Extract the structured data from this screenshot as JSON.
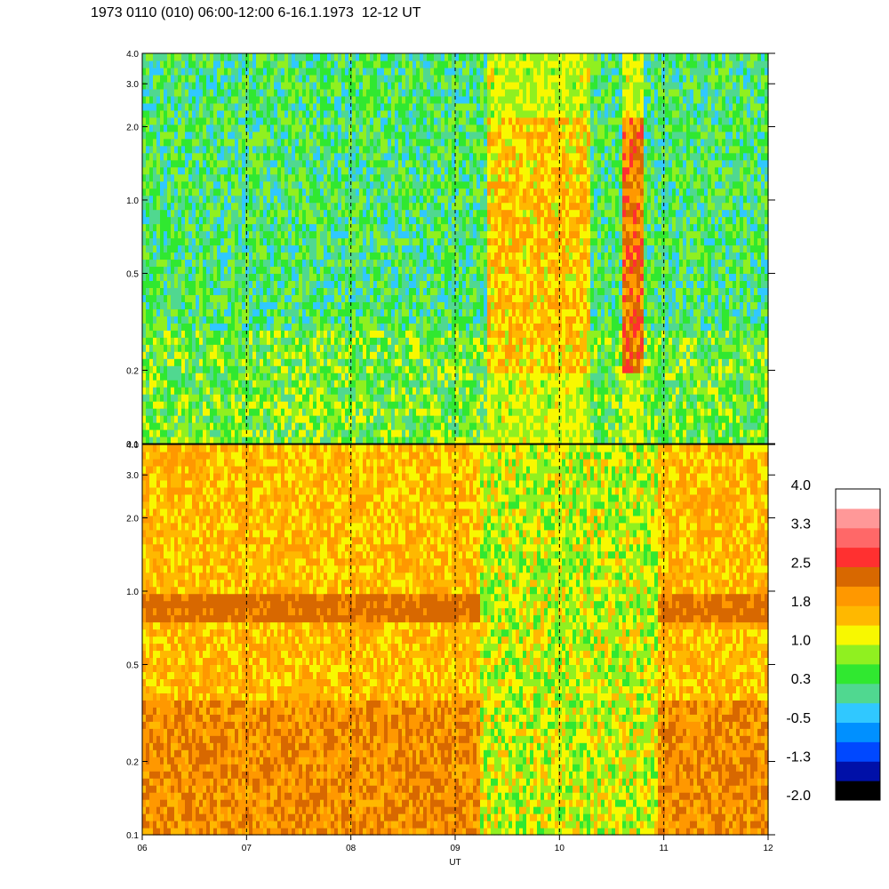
{
  "title": "1973 0110 (010) 06:00-12:00 6-16.1.1973  12-12 UT",
  "chart_data": {
    "type": "heatmap",
    "title": "1973 0110 (010) 06:00-12:00 6-16.1.1973  12-12 UT",
    "xlabel": "UT",
    "x_ticks": [
      "06",
      "07",
      "08",
      "09",
      "10",
      "11",
      "12"
    ],
    "x_range": [
      6,
      12
    ],
    "y_scale": "log",
    "panels": [
      {
        "y_ticks": [
          "0.1",
          "0.2",
          "0.5",
          "1.0",
          "2.0",
          "3.0",
          "4.0"
        ],
        "y_range": [
          0.1,
          4.0
        ],
        "description_levels": {
          "background": 0.3,
          "enhanced_intervals": [
            [
              9.3,
              10.3,
              1.8
            ],
            [
              10.6,
              10.8,
              2.5
            ]
          ]
        }
      },
      {
        "y_ticks": [
          "0.1",
          "0.2",
          "0.5",
          "1.0",
          "2.0",
          "3.0",
          "4.0"
        ],
        "y_range": [
          0.1,
          4.0
        ],
        "description_levels": {
          "band_freq": 0.85,
          "band_intervals": [
            [
              6.0,
              9.25
            ],
            [
              10.95,
              12.0
            ]
          ],
          "band_level": 2.2
        }
      }
    ],
    "colorbar": {
      "labels": [
        "4.0",
        "3.3",
        "2.5",
        "1.8",
        "1.0",
        "0.3",
        "-0.5",
        "-1.3",
        "-2.0"
      ],
      "range": [
        -2.0,
        4.0
      ],
      "colors": [
        "#000000",
        "#0010a8",
        "#0048ff",
        "#0090ff",
        "#30c8ff",
        "#50d890",
        "#30e830",
        "#90f020",
        "#f8f800",
        "#ffb800",
        "#ff9800",
        "#d86800",
        "#ff3030",
        "#ff6868",
        "#ff9898",
        "#ffffff"
      ]
    }
  }
}
